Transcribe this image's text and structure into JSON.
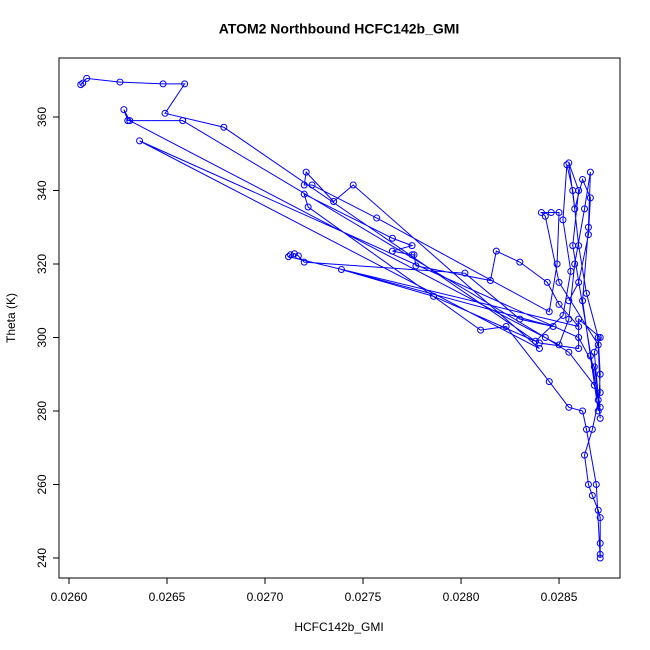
{
  "chart_data": {
    "type": "line",
    "title": "ATOM2 Northbound HCFC142b_GMI",
    "x_label": "HCFC142b_GMI",
    "y_label": "Theta (K)",
    "x": [
      0.02607,
      0.02606,
      0.02609,
      0.02626,
      0.02648,
      0.02659,
      0.02649,
      0.02679,
      0.02838,
      0.02852,
      0.02856,
      0.02852,
      0.02854,
      0.02857,
      0.0286,
      0.02864,
      0.0287,
      0.02871,
      0.0287,
      0.02866,
      0.02862,
      0.02865,
      0.02866,
      0.02863,
      0.02858,
      0.02855,
      0.0285,
      0.02631,
      0.02628,
      0.0263,
      0.02658,
      0.02843,
      0.02855,
      0.02868,
      0.02871,
      0.02868,
      0.0286,
      0.02636,
      0.0284,
      0.02745,
      0.02735,
      0.02721,
      0.0272,
      0.02724,
      0.02757,
      0.02845,
      0.02849,
      0.0285,
      0.02846,
      0.02841,
      0.02843,
      0.0285,
      0.0287,
      0.02871,
      0.02867,
      0.02863,
      0.02865,
      0.02867,
      0.0287,
      0.02871,
      0.02871,
      0.02871,
      0.02871,
      0.02869,
      0.02864,
      0.02862,
      0.02855,
      0.02845,
      0.02823,
      0.0281,
      0.02722,
      0.0272,
      0.02765,
      0.02775,
      0.02765,
      0.02775,
      0.02776,
      0.02777,
      0.02815,
      0.02818,
      0.0283,
      0.02844,
      0.0285,
      0.0286,
      0.02712,
      0.02713,
      0.02715,
      0.02717,
      0.0272,
      0.02802,
      0.0283,
      0.02847,
      0.02739,
      0.02786,
      0.0284,
      0.0286,
      0.0286,
      0.02871,
      0.02868,
      0.02871,
      0.0287,
      0.02857,
      0.0286,
      0.02855,
      0.02858,
      0.02862,
      0.02866,
      0.02865,
      0.0286,
      0.02855
    ],
    "series": [
      {
        "color": "#0000ff",
        "values": [
          369.2,
          368.8,
          370.5,
          369.5,
          369,
          369,
          361,
          357.2,
          299,
          306,
          318,
          332,
          347,
          340,
          325,
          312,
          300,
          290,
          280,
          295,
          310,
          330,
          345,
          335,
          320,
          305,
          298,
          359,
          362,
          359,
          359,
          300,
          296,
          287,
          281,
          292,
          300,
          353.5,
          297,
          341.5,
          337,
          345,
          341.5,
          341.5,
          332.5,
          307,
          320,
          334,
          334,
          334,
          333,
          315,
          298,
          285,
          275,
          268,
          260,
          257,
          253,
          251,
          244,
          241,
          240,
          260,
          275,
          280,
          281,
          288,
          303,
          302,
          335.5,
          339,
          327,
          325,
          323.5,
          322.5,
          322.5,
          319.5,
          315.5,
          323.5,
          320.5,
          315,
          309,
          303,
          322,
          322.5,
          322.8,
          322.2,
          320.5,
          317.5,
          305,
          303,
          318.5,
          311.2,
          298.5,
          297,
          305,
          300,
          296,
          278,
          283,
          325,
          340,
          347.5,
          335,
          343,
          338,
          328,
          315,
          310
        ]
      }
    ],
    "xlim": [
      0.025949,
      0.028811
    ],
    "ylim": [
      234.56,
      376.05
    ],
    "xticks": [
      {
        "value": 0.026,
        "label": "0.0260"
      },
      {
        "value": 0.0265,
        "label": "0.0265"
      },
      {
        "value": 0.027,
        "label": "0.0270"
      },
      {
        "value": 0.0275,
        "label": "0.0275"
      },
      {
        "value": 0.028,
        "label": "0.0280"
      },
      {
        "value": 0.0285,
        "label": "0.0285"
      }
    ],
    "yticks": [
      240,
      260,
      280,
      300,
      320,
      340,
      360
    ]
  }
}
